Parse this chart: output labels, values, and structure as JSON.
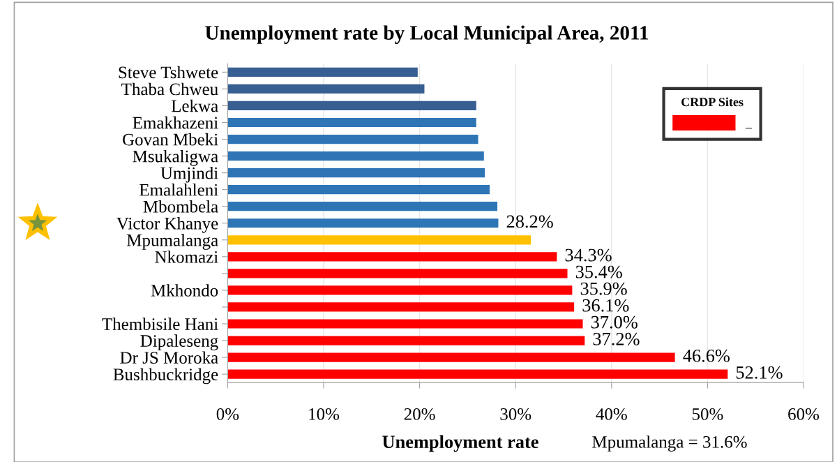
{
  "chart_data": {
    "type": "bar",
    "orientation": "horizontal",
    "title": "Unemployment rate by Local Municipal Area, 2011",
    "xlabel": "Unemployment rate",
    "categories": [
      "Steve Tshwete",
      "Thaba Chweu",
      "Lekwa",
      "Emakhazeni",
      "Govan Mbeki",
      "Msukaligwa",
      "Umjindi",
      "Emalahleni",
      "Mbombela",
      "Victor Khanye",
      "Mpumalanga",
      "Nkomazi",
      null,
      "Mkhondo",
      null,
      "Thembisile Hani",
      "Dipaleseng",
      "Dr JS Moroka",
      "Bushbuckridge"
    ],
    "series": [
      {
        "name": "_",
        "color": "#ff0000",
        "values": [
          19.8,
          20.5,
          25.9,
          25.9,
          26.1,
          26.7,
          26.8,
          27.3,
          28.1,
          28.2,
          31.6,
          34.3,
          35.4,
          35.9,
          36.1,
          37.0,
          37.2,
          46.6,
          52.1
        ],
        "colors": [
          "#375f91",
          "#375f91",
          "#375f91",
          "#2e75b6",
          "#2e75b6",
          "#2e75b6",
          "#2e75b6",
          "#2e75b6",
          "#2e75b6",
          "#2e75b6",
          "#ffc000",
          "#ff0000",
          "#ff0000",
          "#ff0000",
          "#ff0000",
          "#ff0000",
          "#ff0000",
          "#ff0000",
          "#ff0000"
        ],
        "value_labels": [
          null,
          null,
          null,
          null,
          null,
          null,
          null,
          null,
          null,
          "28.2%",
          null,
          "34.3%",
          "35.4%",
          "35.9%",
          "36.1%",
          "37.0%",
          "37.2%",
          "46.6%",
          "52.1%"
        ]
      }
    ],
    "legend_title": "CRDP Sites",
    "legend": "top right",
    "xlim": [
      0,
      60
    ],
    "xticks": [
      {
        "value": 0,
        "label": "0%"
      },
      {
        "value": 10,
        "label": "10%"
      },
      {
        "value": 20,
        "label": "20%"
      },
      {
        "value": 30,
        "label": "30%"
      },
      {
        "value": 40,
        "label": "40%"
      },
      {
        "value": 50,
        "label": "50%"
      },
      {
        "value": 60,
        "label": "60%"
      }
    ],
    "grid": "x",
    "annotations": [
      "Mpumalanga = 31.6%"
    ]
  }
}
